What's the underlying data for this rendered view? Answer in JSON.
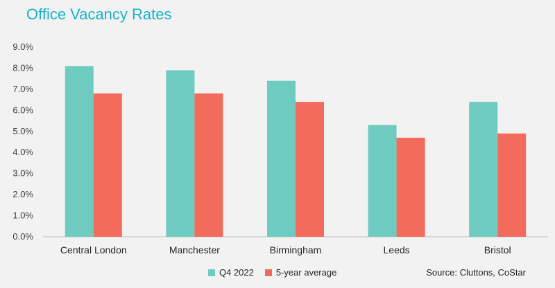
{
  "chart_data": {
    "type": "bar",
    "title": "Office Vacancy Rates",
    "categories": [
      "Central London",
      "Manchester",
      "Birmingham",
      "Leeds",
      "Bristol"
    ],
    "series": [
      {
        "name": "Q4 2022",
        "values": [
          8.1,
          7.9,
          7.4,
          5.3,
          6.4
        ],
        "color": "#6ecbbf"
      },
      {
        "name": "5-year average",
        "values": [
          6.8,
          6.8,
          6.4,
          4.7,
          4.9
        ],
        "color": "#f26b5b"
      }
    ],
    "ylim": [
      0,
      9
    ],
    "yticks": [
      "0.0%",
      "1.0%",
      "2.0%",
      "3.0%",
      "4.0%",
      "5.0%",
      "6.0%",
      "7.0%",
      "8.0%",
      "9.0%"
    ],
    "grid": false,
    "legend_placement": "bottom",
    "source": "Source: Cluttons, CoStar"
  }
}
